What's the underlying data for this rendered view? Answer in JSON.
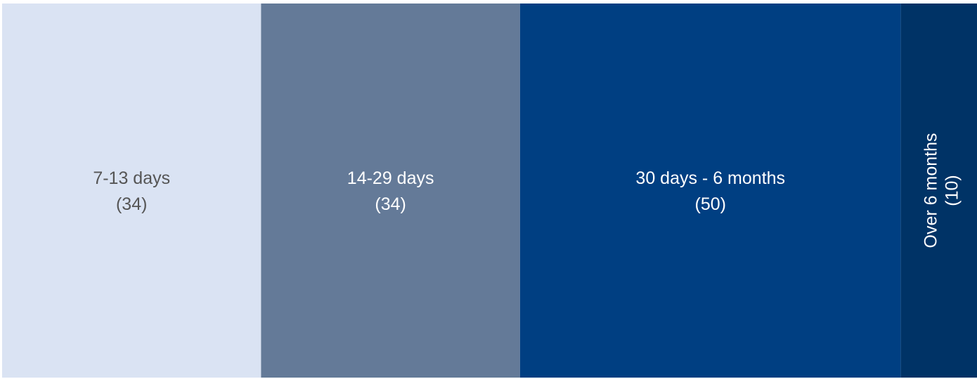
{
  "chart_data": {
    "type": "treemap",
    "categories": [
      "7-13 days",
      "14-29 days",
      "30 days - 6 months",
      "Over 6 months"
    ],
    "values": [
      34,
      34,
      50,
      10
    ],
    "value_labels": [
      "(34)",
      "(34)",
      "(50)",
      "(10)"
    ],
    "colors": [
      "#dae3f3",
      "#647a98",
      "#003f82",
      "#003366"
    ]
  }
}
